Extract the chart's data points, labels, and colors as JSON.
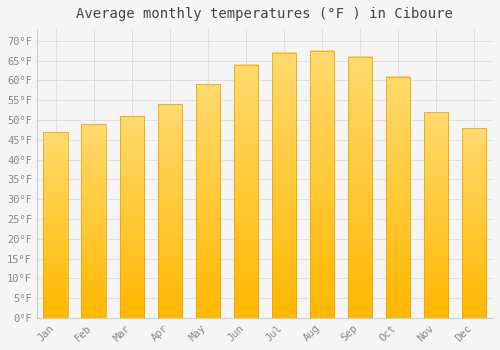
{
  "months": [
    "Jan",
    "Feb",
    "Mar",
    "Apr",
    "May",
    "Jun",
    "Jul",
    "Aug",
    "Sep",
    "Oct",
    "Nov",
    "Dec"
  ],
  "values": [
    47,
    49,
    51,
    54,
    59,
    64,
    67,
    67.5,
    66,
    61,
    52,
    48
  ],
  "bar_color_bottom": "#FFB800",
  "bar_color_top": "#FFDA6E",
  "bar_edge_color": "#E8A000",
  "title": "Average monthly temperatures (°F ) in Ciboure",
  "ylim": [
    0,
    73
  ],
  "yticks": [
    0,
    5,
    10,
    15,
    20,
    25,
    30,
    35,
    40,
    45,
    50,
    55,
    60,
    65,
    70
  ],
  "ytick_labels": [
    "0°F",
    "5°F",
    "10°F",
    "15°F",
    "20°F",
    "25°F",
    "30°F",
    "35°F",
    "40°F",
    "45°F",
    "50°F",
    "55°F",
    "60°F",
    "65°F",
    "70°F"
  ],
  "background_color": "#f5f5f5",
  "plot_bg_color": "#f5f5f5",
  "grid_color": "#dddddd",
  "title_fontsize": 10,
  "tick_fontsize": 7.5,
  "tick_color": "#888888",
  "bar_width": 0.65
}
